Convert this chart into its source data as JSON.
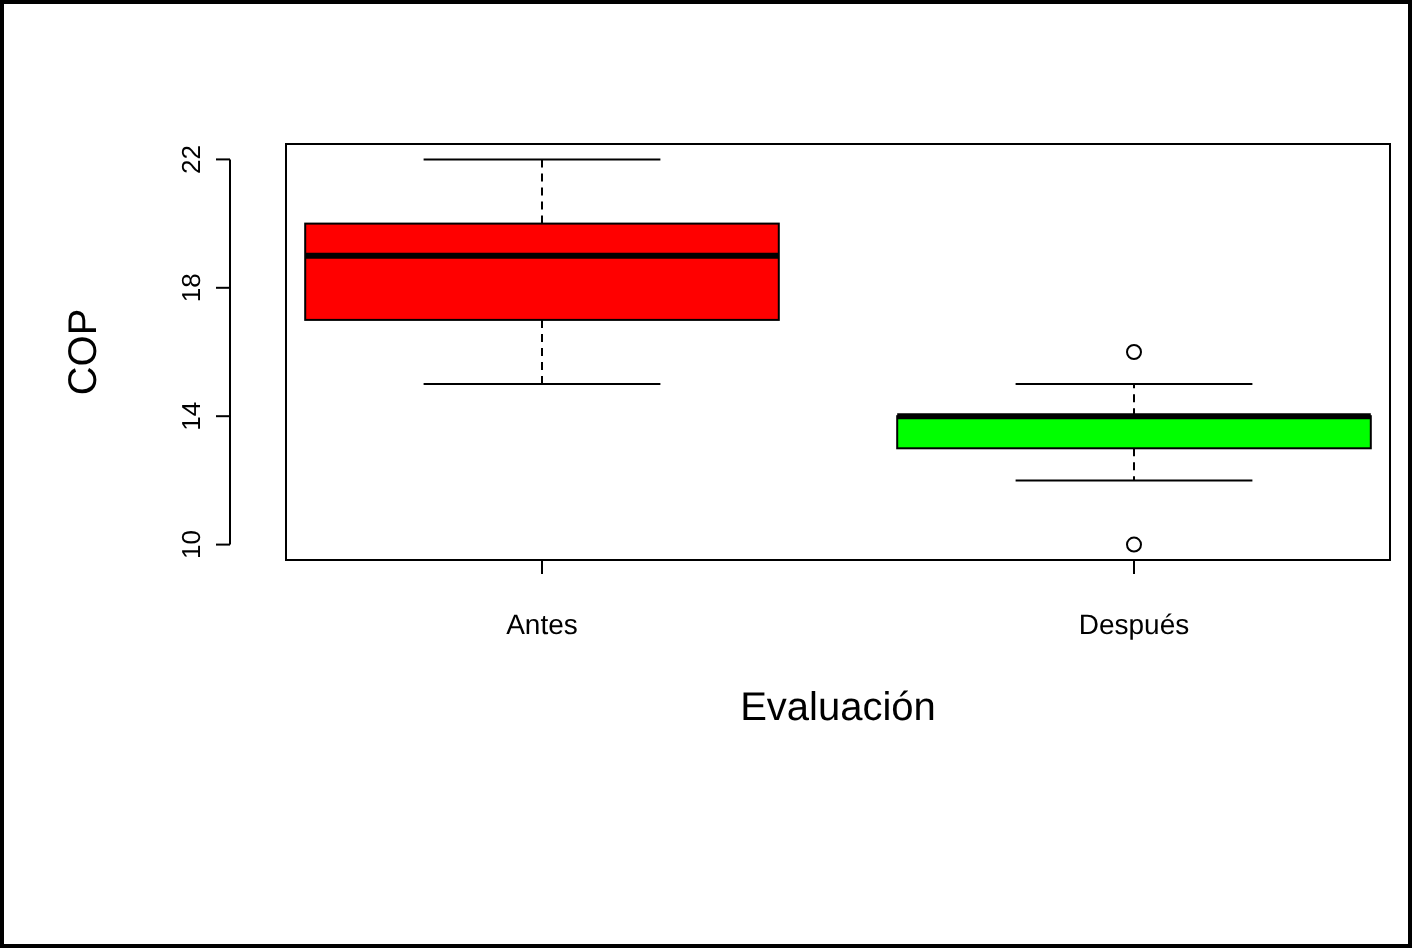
{
  "chart_data": {
    "type": "box",
    "xlabel": "Evaluación",
    "ylabel": "COP",
    "categories": [
      "Antes",
      "Después"
    ],
    "colors": [
      "#ff0000",
      "#00ff00"
    ],
    "boxes": [
      {
        "low": 15,
        "q1": 17,
        "median": 19,
        "q3": 20,
        "high": 22
      },
      {
        "low": 12,
        "q1": 13,
        "median": 14,
        "q3": 14,
        "high": 15,
        "outliers": [
          16,
          10
        ]
      }
    ],
    "ylim": [
      9.52,
      22.48
    ],
    "yticks": [
      10,
      14,
      18,
      22
    ],
    "grid": false
  }
}
